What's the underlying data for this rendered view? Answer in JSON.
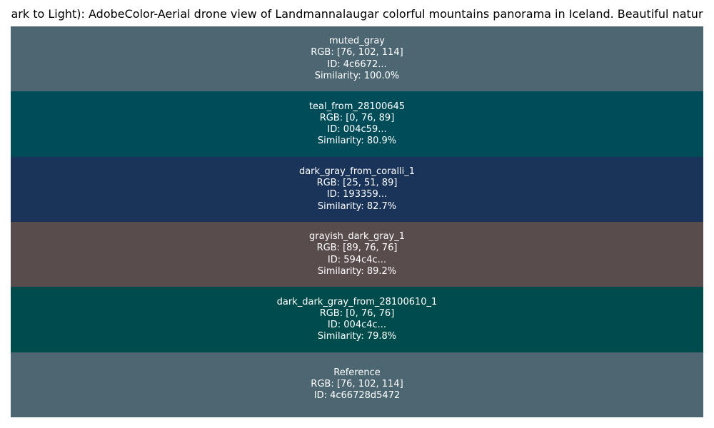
{
  "chart_data": {
    "type": "table",
    "title": "ark to Light): AdobeColor-Aerial drone view of Landmannalaugar colorful mountains panorama in Iceland. Beautiful natur",
    "swatches": [
      {
        "label": "muted_gray",
        "rgb_text": "RGB: [76, 102, 114]",
        "id_text": "ID: 4c6672...",
        "similarity_text": "Similarity: 100.0%",
        "color": "#4c6672",
        "similarity": 100.0
      },
      {
        "label": "teal_from_28100645",
        "rgb_text": "RGB: [0, 76, 89]",
        "id_text": "ID: 004c59...",
        "similarity_text": "Similarity: 80.9%",
        "color": "#004c59",
        "similarity": 80.9
      },
      {
        "label": "dark_gray_from_coralli_1",
        "rgb_text": "RGB: [25, 51, 89]",
        "id_text": "ID: 193359...",
        "similarity_text": "Similarity: 82.7%",
        "color": "#193359",
        "similarity": 82.7
      },
      {
        "label": "grayish_dark_gray_1",
        "rgb_text": "RGB: [89, 76, 76]",
        "id_text": "ID: 594c4c...",
        "similarity_text": "Similarity: 89.2%",
        "color": "#594c4c",
        "similarity": 89.2
      },
      {
        "label": "dark_dark_gray_from_28100610_1",
        "rgb_text": "RGB: [0, 76, 76]",
        "id_text": "ID: 004c4c...",
        "similarity_text": "Similarity: 79.8%",
        "color": "#004c4c",
        "similarity": 79.8
      },
      {
        "label": "Reference",
        "rgb_text": "RGB: [76, 102, 114]",
        "id_text": "ID: 4c66728d5472",
        "similarity_text": "",
        "color": "#4c6672"
      }
    ]
  }
}
